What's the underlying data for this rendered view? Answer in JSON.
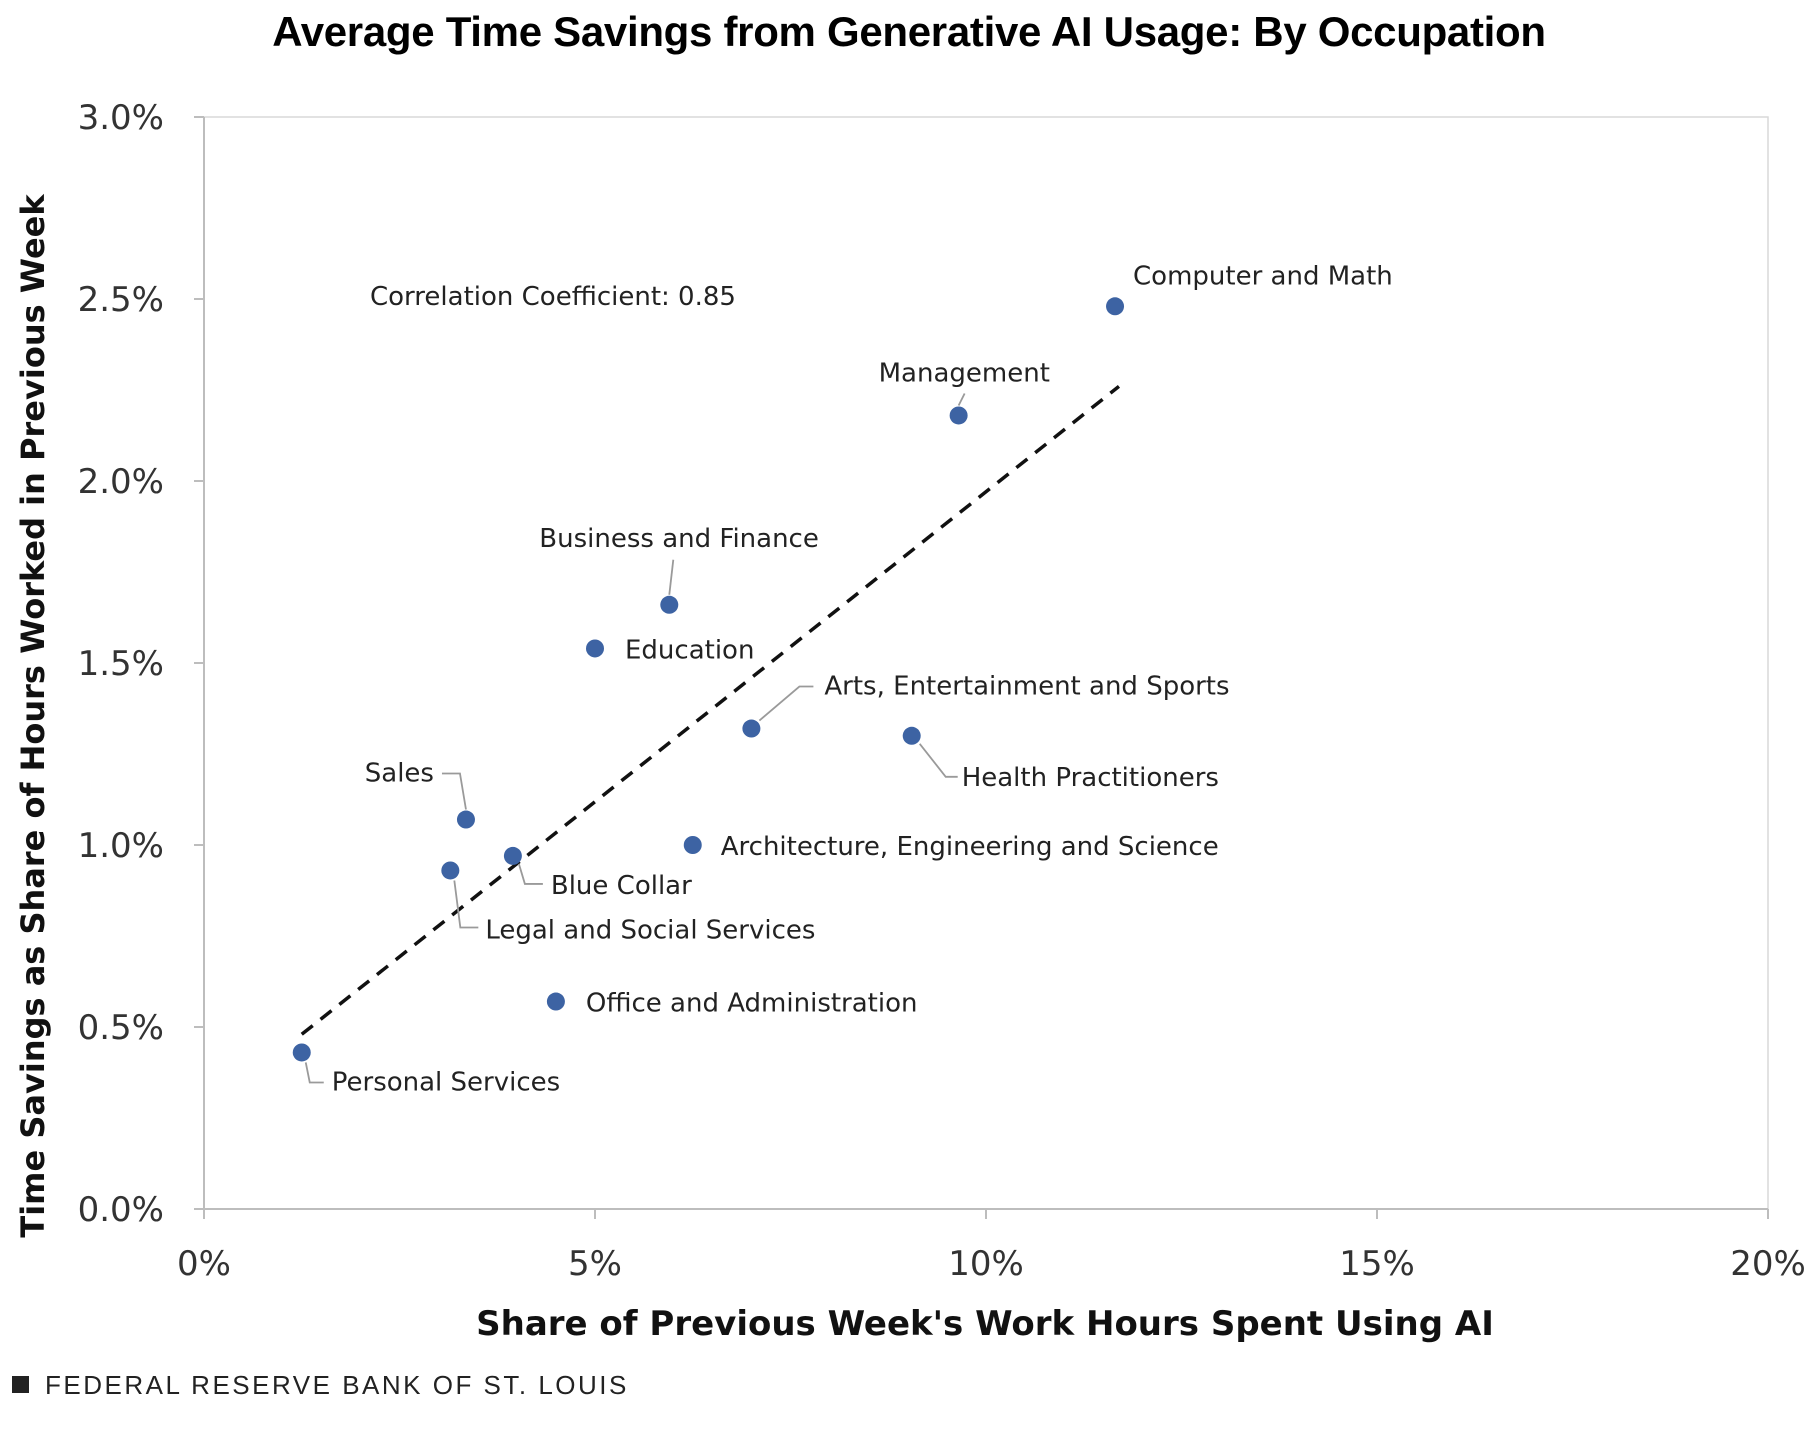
{
  "chart_data": {
    "type": "scatter",
    "title": "Average Time Savings from Generative AI Usage: By Occupation",
    "xlabel": "Share of Previous Week's Work Hours Spent Using AI",
    "ylabel": "Time Savings as Share of Hours Worked in Previous Week",
    "xlim": [
      0,
      20
    ],
    "ylim": [
      0,
      3.0
    ],
    "x_ticks": [
      0,
      5,
      10,
      15,
      20
    ],
    "x_tick_labels": [
      "0%",
      "5%",
      "10%",
      "15%",
      "20%"
    ],
    "y_ticks": [
      0,
      0.5,
      1.0,
      1.5,
      2.0,
      2.5,
      3.0
    ],
    "y_tick_labels": [
      "0.0%",
      "0.5%",
      "1.0%",
      "1.5%",
      "2.0%",
      "2.5%",
      "3.0%"
    ],
    "annotation": "Correlation Coefficient: 0.85",
    "trendline": {
      "x": [
        1.25,
        11.7
      ],
      "y": [
        0.48,
        2.26
      ],
      "style": "dashed"
    },
    "marker_color": "#3d63a3",
    "points": [
      {
        "label": "Computer and Math",
        "x": 11.65,
        "y": 2.48
      },
      {
        "label": "Management",
        "x": 9.65,
        "y": 2.18
      },
      {
        "label": "Business and Finance",
        "x": 5.95,
        "y": 1.66
      },
      {
        "label": "Education",
        "x": 5.0,
        "y": 1.54
      },
      {
        "label": "Arts, Entertainment and Sports",
        "x": 7.0,
        "y": 1.32
      },
      {
        "label": "Health Practitioners",
        "x": 9.05,
        "y": 1.3
      },
      {
        "label": "Sales",
        "x": 3.35,
        "y": 1.07
      },
      {
        "label": "Architecture, Engineering and Science",
        "x": 6.25,
        "y": 1.0
      },
      {
        "label": "Blue Collar",
        "x": 3.95,
        "y": 0.97
      },
      {
        "label": "Legal and Social Services",
        "x": 3.15,
        "y": 0.93
      },
      {
        "label": "Office and Administration",
        "x": 4.5,
        "y": 0.57
      },
      {
        "label": "Personal Services",
        "x": 1.25,
        "y": 0.43
      }
    ]
  },
  "source": "FEDERAL RESERVE BANK OF ST. LOUIS"
}
